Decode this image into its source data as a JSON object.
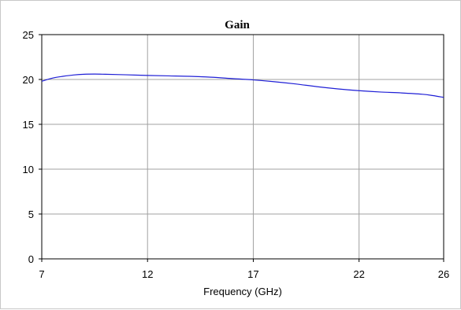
{
  "chart_data": {
    "type": "line",
    "title": "Gain",
    "xlabel": "Frequency (GHz)",
    "ylabel": "",
    "xlim": [
      7,
      26
    ],
    "ylim": [
      0,
      25
    ],
    "xticks": [
      7,
      12,
      17,
      22,
      26
    ],
    "yticks": [
      0,
      5,
      10,
      15,
      20,
      25
    ],
    "grid": true,
    "legend": "none",
    "series": [
      {
        "color": "#1f1fd6",
        "x": [
          7,
          7.5,
          8,
          8.5,
          9,
          9.5,
          10,
          11,
          12,
          13,
          14,
          15,
          16,
          17,
          18,
          19,
          20,
          21,
          22,
          23,
          24,
          25,
          25.5,
          26
        ],
        "y": [
          19.8,
          20.15,
          20.35,
          20.5,
          20.58,
          20.6,
          20.58,
          20.52,
          20.45,
          20.4,
          20.35,
          20.25,
          20.1,
          19.95,
          19.75,
          19.5,
          19.2,
          18.95,
          18.75,
          18.6,
          18.5,
          18.35,
          18.2,
          18.0
        ]
      }
    ]
  }
}
